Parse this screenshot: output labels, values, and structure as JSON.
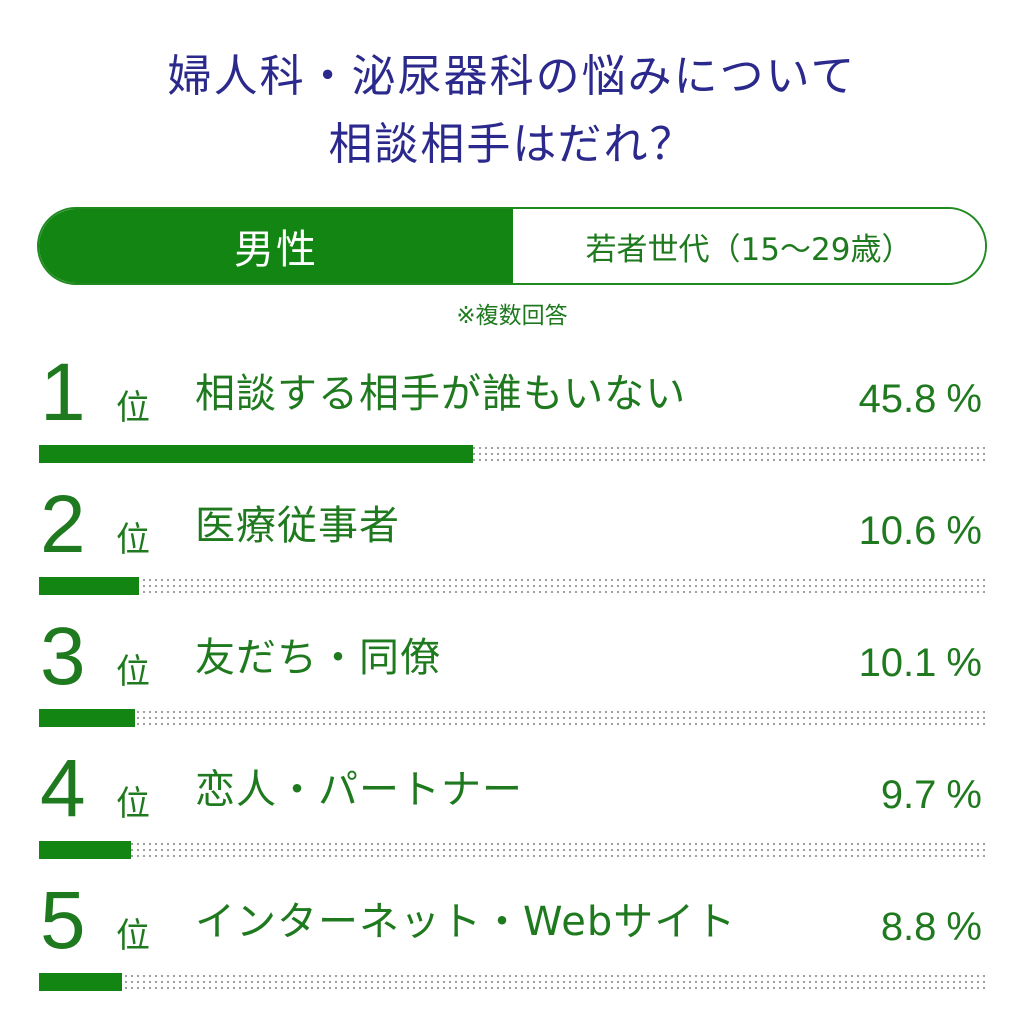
{
  "title": {
    "line1": "婦人科・泌尿器科の悩みについて",
    "line2": "相談相手はだれ？"
  },
  "segment": {
    "left": "男性",
    "right": "若者世代（15～29歳）"
  },
  "note": "※複数回答",
  "colors": {
    "title": "#2b2a8c",
    "accent": "#138513",
    "text": "#1f7a1f",
    "dots": "#9a9a9a"
  },
  "rank_suffix": "位",
  "percent_unit": "%",
  "chart_data": {
    "type": "bar",
    "title": "婦人科・泌尿器科の悩みについて 相談相手はだれ？",
    "ylim": [
      0,
      100
    ],
    "ranks": [
      "1",
      "2",
      "3",
      "4",
      "5"
    ],
    "categories": [
      "相談する相手が誰もいない",
      "医療従事者",
      "友だち・同僚",
      "恋人・パートナー",
      "インターネット・Webサイト"
    ],
    "values": [
      45.8,
      10.6,
      10.1,
      9.7,
      8.8
    ],
    "value_labels": [
      "45.8",
      "10.6",
      "10.1",
      "9.7",
      "8.8"
    ]
  }
}
